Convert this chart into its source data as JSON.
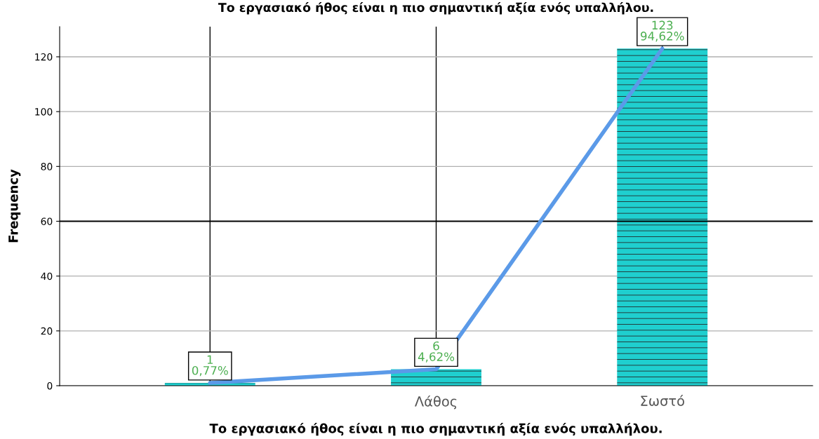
{
  "chart_data": {
    "type": "bar",
    "title": "Το εργασιακό ήθος είναι η πιο σημαντική αξία ενός υπαλλήλου.",
    "xlabel": "Το εργασιακό ήθος είναι η πιο σημαντική αξία ενός υπαλλήλου.",
    "ylabel": "Frequency",
    "categories": [
      null,
      "Λάθος",
      "Σωστό"
    ],
    "series": [
      {
        "color": "#1fcfcf",
        "values": [
          1,
          6,
          123
        ],
        "value_labels": [
          "1\n0,77%",
          "6\n4,62%",
          "123\n94,62%"
        ]
      },
      {
        "type": "line",
        "color": "#5b9ae8",
        "values": [
          1,
          6,
          123
        ]
      }
    ],
    "ylim": [
      0,
      131
    ],
    "yticks": [
      0,
      20,
      40,
      60,
      80,
      100,
      120
    ],
    "grid": true,
    "ref_lines": [
      {
        "axis": "y",
        "value": 60,
        "color": "#000000"
      }
    ]
  }
}
